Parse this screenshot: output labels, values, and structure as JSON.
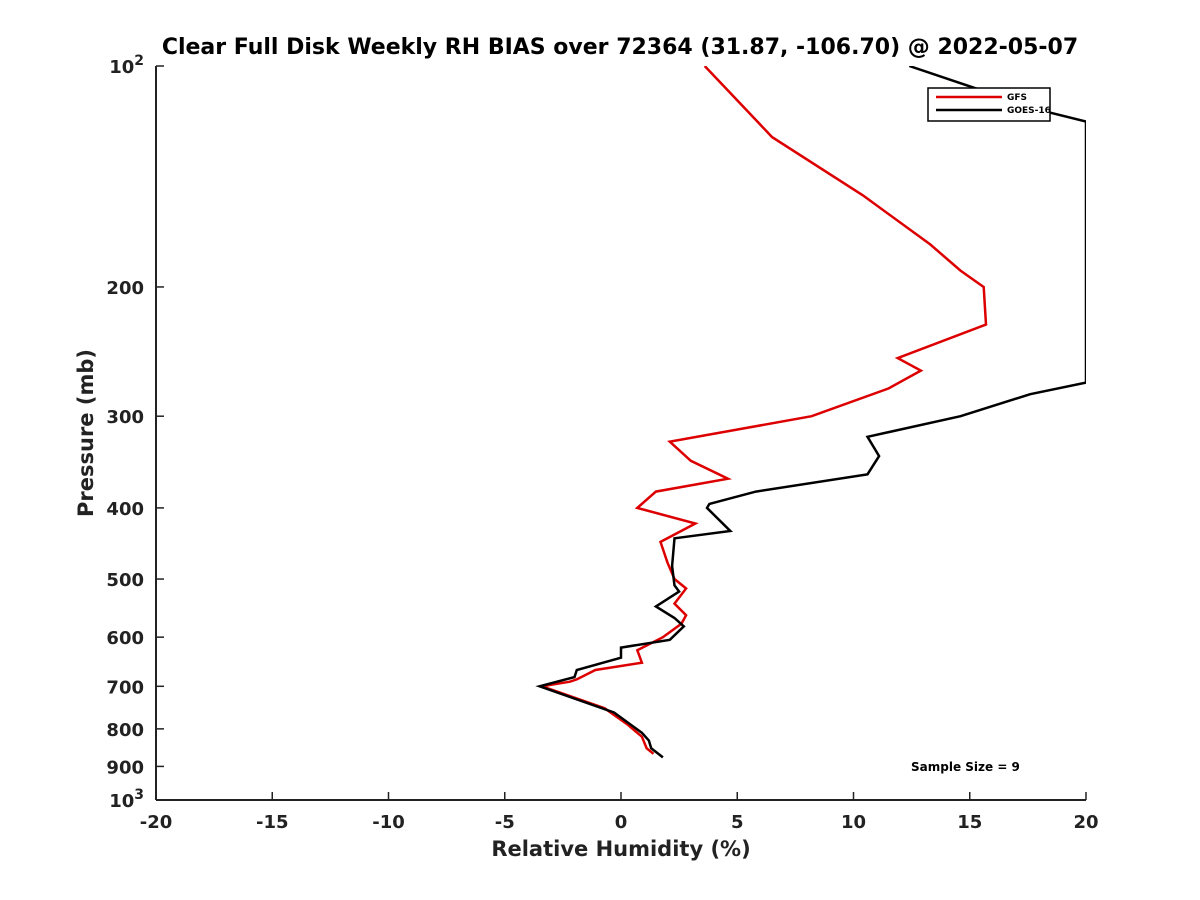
{
  "chart_data": {
    "type": "line",
    "title": "Clear Full Disk Weekly RH BIAS over 72364 (31.87, -106.70) @ 2022-05-07",
    "xlabel": "Relative Humidity (%)",
    "ylabel": "Pressure (mb)",
    "xlim": [
      -20,
      20
    ],
    "ylim": [
      100,
      1000
    ],
    "y_scale": "log",
    "y_reversed": true,
    "x_ticks": [
      "-20",
      "-15",
      "-10",
      "-5",
      "0",
      "5",
      "10",
      "15",
      "20"
    ],
    "y_ticks": [
      {
        "value": 100,
        "base": "10",
        "exp": "2"
      },
      {
        "value": 200,
        "label": "200"
      },
      {
        "value": 300,
        "label": "300"
      },
      {
        "value": 400,
        "label": "400"
      },
      {
        "value": 500,
        "label": "500"
      },
      {
        "value": 600,
        "label": "600"
      },
      {
        "value": 700,
        "label": "700"
      },
      {
        "value": 800,
        "label": "800"
      },
      {
        "value": 900,
        "label": "900"
      },
      {
        "value": 1000,
        "base": "10",
        "exp": "3"
      }
    ],
    "grid": false,
    "legend_position": "top-right",
    "series": [
      {
        "name": "GFS",
        "color": "#dd0000",
        "points": [
          [
            3.6,
            100
          ],
          [
            6.5,
            125
          ],
          [
            10.4,
            150
          ],
          [
            13.3,
            175
          ],
          [
            14.6,
            190
          ],
          [
            15.6,
            200
          ],
          [
            15.7,
            225
          ],
          [
            11.9,
            250
          ],
          [
            12.9,
            260
          ],
          [
            11.5,
            275
          ],
          [
            8.2,
            300
          ],
          [
            2.1,
            325
          ],
          [
            3.0,
            345
          ],
          [
            4.6,
            365
          ],
          [
            1.5,
            380
          ],
          [
            0.7,
            400
          ],
          [
            3.2,
            420
          ],
          [
            1.7,
            445
          ],
          [
            2.0,
            475
          ],
          [
            2.3,
            500
          ],
          [
            2.8,
            515
          ],
          [
            2.3,
            540
          ],
          [
            2.8,
            560
          ],
          [
            2.6,
            575
          ],
          [
            1.8,
            600
          ],
          [
            0.7,
            625
          ],
          [
            0.9,
            650
          ],
          [
            -1.1,
            665
          ],
          [
            -1.9,
            685
          ],
          [
            -2.2,
            690
          ],
          [
            -3.4,
            700
          ],
          [
            -0.7,
            750
          ],
          [
            0.3,
            790
          ],
          [
            0.9,
            820
          ],
          [
            1.1,
            850
          ],
          [
            1.4,
            865
          ]
        ]
      },
      {
        "name": "GOES-16",
        "color": "#000000",
        "points": [
          [
            12.4,
            100
          ],
          [
            18.1,
            115
          ],
          [
            20.0,
            119
          ],
          [
            20.0,
            270
          ],
          [
            17.6,
            280
          ],
          [
            14.6,
            300
          ],
          [
            10.6,
            320
          ],
          [
            11.1,
            340
          ],
          [
            10.6,
            360
          ],
          [
            5.8,
            380
          ],
          [
            3.8,
            395
          ],
          [
            3.7,
            400
          ],
          [
            4.7,
            430
          ],
          [
            2.3,
            440
          ],
          [
            2.2,
            480
          ],
          [
            2.3,
            510
          ],
          [
            2.5,
            520
          ],
          [
            1.5,
            545
          ],
          [
            2.3,
            565
          ],
          [
            2.7,
            580
          ],
          [
            2.1,
            605
          ],
          [
            0.0,
            620
          ],
          [
            0.0,
            640
          ],
          [
            -1.9,
            665
          ],
          [
            -2.0,
            680
          ],
          [
            -3.5,
            700
          ],
          [
            -0.3,
            760
          ],
          [
            0.9,
            810
          ],
          [
            1.2,
            830
          ],
          [
            1.3,
            850
          ],
          [
            1.8,
            875
          ]
        ]
      }
    ],
    "annotation": "Sample Size = 9"
  }
}
